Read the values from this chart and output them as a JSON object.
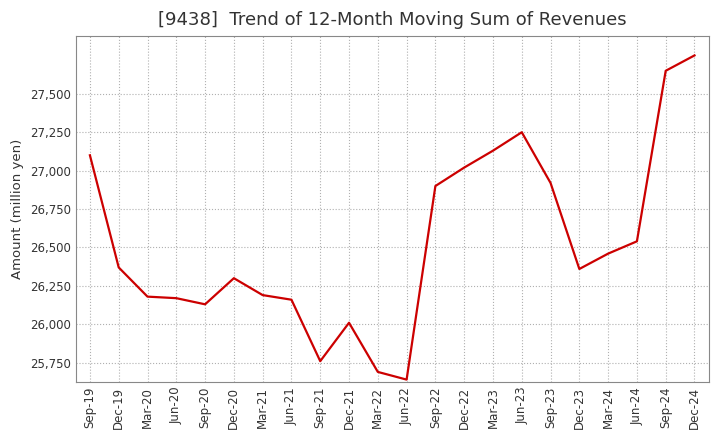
{
  "title": "[9438]  Trend of 12-Month Moving Sum of Revenues",
  "ylabel": "Amount (million yen)",
  "line_color": "#cc0000",
  "background_color": "#ffffff",
  "plot_background": "#ffffff",
  "grid_color": "#b0b0b0",
  "xlabels": [
    "Sep-19",
    "Dec-19",
    "Mar-20",
    "Jun-20",
    "Sep-20",
    "Dec-20",
    "Mar-21",
    "Jun-21",
    "Sep-21",
    "Dec-21",
    "Mar-22",
    "Jun-22",
    "Sep-22",
    "Dec-22",
    "Mar-23",
    "Jun-23",
    "Sep-23",
    "Dec-23",
    "Mar-24",
    "Jun-24",
    "Sep-24",
    "Dec-24"
  ],
  "values": [
    27100,
    26370,
    26180,
    26170,
    26130,
    26300,
    26190,
    26160,
    25760,
    26010,
    25690,
    25640,
    26900,
    27020,
    27130,
    27250,
    26920,
    26360,
    26460,
    26540,
    27650,
    27750
  ],
  "ylim": [
    25625,
    27875
  ],
  "yticks": [
    25750,
    26000,
    26250,
    26500,
    26750,
    27000,
    27250,
    27500
  ],
  "title_fontsize": 13,
  "axis_fontsize": 9.5,
  "tick_fontsize": 8.5,
  "linewidth": 1.6
}
